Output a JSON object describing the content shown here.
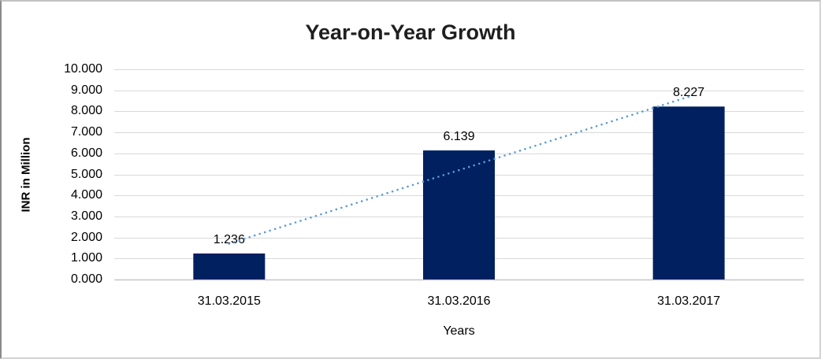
{
  "chart_data": {
    "type": "bar",
    "title": "Year-on-Year Growth",
    "xlabel": "Years",
    "ylabel": "INR in Million",
    "categories": [
      "31.03.2015",
      "31.03.2016",
      "31.03.2017"
    ],
    "values": [
      1.236,
      6.139,
      8.227
    ],
    "data_labels": [
      "1.236",
      "6.139",
      "8.227"
    ],
    "y_ticks": [
      "0.000",
      "1.000",
      "2.000",
      "3.000",
      "4.000",
      "5.000",
      "6.000",
      "7.000",
      "8.000",
      "9.000",
      "10.000"
    ],
    "ylim": [
      0,
      10
    ],
    "grid": true,
    "legend": "none",
    "trendline": {
      "type": "linear",
      "style": "dotted"
    },
    "colors": {
      "bar": "#002060",
      "trendline": "#5b9bd5",
      "gridline": "#d9d9d9",
      "axis_line": "#c6c6c6",
      "text": "#000000",
      "title_text": "#1f1f1f"
    }
  }
}
